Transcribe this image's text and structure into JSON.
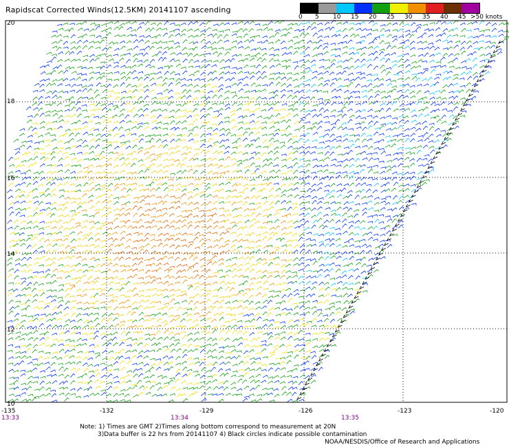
{
  "title": "Rapidscat Corrected Winds(12.5KM) 20141107 ascending",
  "colorbar": {
    "colors": [
      "#000000",
      "#9a9a9a",
      "#00c8ff",
      "#0030ff",
      "#10a010",
      "#f0f000",
      "#f09000",
      "#e02020",
      "#6a3000",
      "#a000a0",
      "#50207a"
    ],
    "labels": [
      "0",
      "5",
      "10",
      "15",
      "20",
      "25",
      "30",
      "35",
      "40",
      "45",
      ">50 knots"
    ]
  },
  "map": {
    "lat_labels": [
      "20",
      "18",
      "16",
      "14",
      "12",
      "10"
    ],
    "lon_labels": [
      "-135",
      "-132",
      "-129",
      "-126",
      "-123",
      "-120"
    ],
    "time_labels": [
      "13:33",
      "13:34",
      "13:35"
    ]
  },
  "notes": {
    "line1": "Note: 1) Times are GMT 2)Times along bottom correspond to measurement at 20N",
    "line2": "3)Data buffer is 22 hrs from 20141107 4) Black circles indicate possible contamination",
    "credit": "NOAA/NESDIS/Office of Research and Applications"
  }
}
